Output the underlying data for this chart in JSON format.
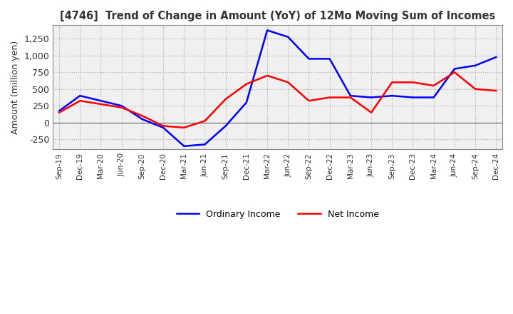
{
  "title": "[4746]  Trend of Change in Amount (YoY) of 12Mo Moving Sum of Incomes",
  "ylabel": "Amount (million yen)",
  "ylim": [
    -400,
    1450
  ],
  "yticks": [
    -250,
    0,
    250,
    500,
    750,
    1000,
    1250
  ],
  "ordinary_income_color": "#0000FF",
  "net_income_color": "#FF0000",
  "background_color": "#FFFFFF",
  "plot_bg_color": "#F0F0F0",
  "grid_color": "#AAAAAA",
  "dates": [
    "Sep-19",
    "Dec-19",
    "Mar-20",
    "Jun-20",
    "Sep-20",
    "Dec-20",
    "Mar-21",
    "Jun-21",
    "Sep-21",
    "Dec-21",
    "Mar-22",
    "Jun-22",
    "Sep-22",
    "Dec-22",
    "Mar-23",
    "Jun-23",
    "Sep-23",
    "Dec-23",
    "Mar-24",
    "Jun-24",
    "Sep-24",
    "Dec-24"
  ],
  "ordinary_income": [
    175,
    400,
    325,
    250,
    50,
    -75,
    -350,
    -325,
    -50,
    300,
    1375,
    1275,
    950,
    950,
    400,
    375,
    400,
    375,
    375,
    800,
    850,
    975
  ],
  "net_income": [
    150,
    325,
    275,
    225,
    100,
    -50,
    -75,
    25,
    350,
    575,
    700,
    600,
    325,
    375,
    375,
    150,
    600,
    600,
    550,
    750,
    500,
    475
  ]
}
